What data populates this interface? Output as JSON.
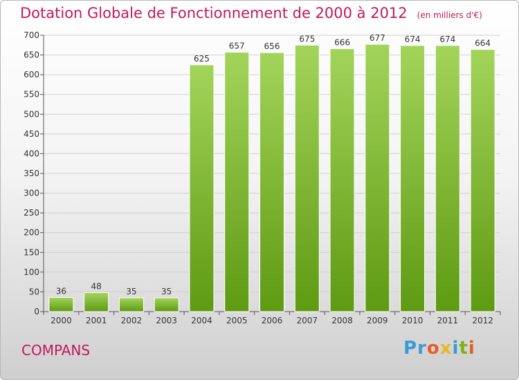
{
  "title": "Dotation Globale de Fonctionnement de 2000 à 2012",
  "unit_note": "(en milliers d'€)",
  "commune": "COMPANS",
  "logo": {
    "text": "Proxiti",
    "letters": [
      "Pr",
      "o",
      "x",
      "i",
      "t",
      "i"
    ]
  },
  "colors": {
    "title": "#c2185b",
    "bar_top": "#a3d45a",
    "bar_bottom": "#5e9a12"
  },
  "chart_data": {
    "type": "bar",
    "categories": [
      "2000",
      "2001",
      "2002",
      "2003",
      "2004",
      "2005",
      "2006",
      "2007",
      "2008",
      "2009",
      "2010",
      "2011",
      "2012"
    ],
    "values": [
      36,
      48,
      35,
      35,
      625,
      657,
      656,
      675,
      666,
      677,
      674,
      674,
      664
    ],
    "title": "Dotation Globale de Fonctionnement de 2000 à 2012",
    "ylim": [
      0,
      700
    ],
    "yticks": [
      0,
      50,
      100,
      150,
      200,
      250,
      300,
      350,
      400,
      450,
      500,
      550,
      600,
      650,
      700
    ],
    "grid": true
  }
}
